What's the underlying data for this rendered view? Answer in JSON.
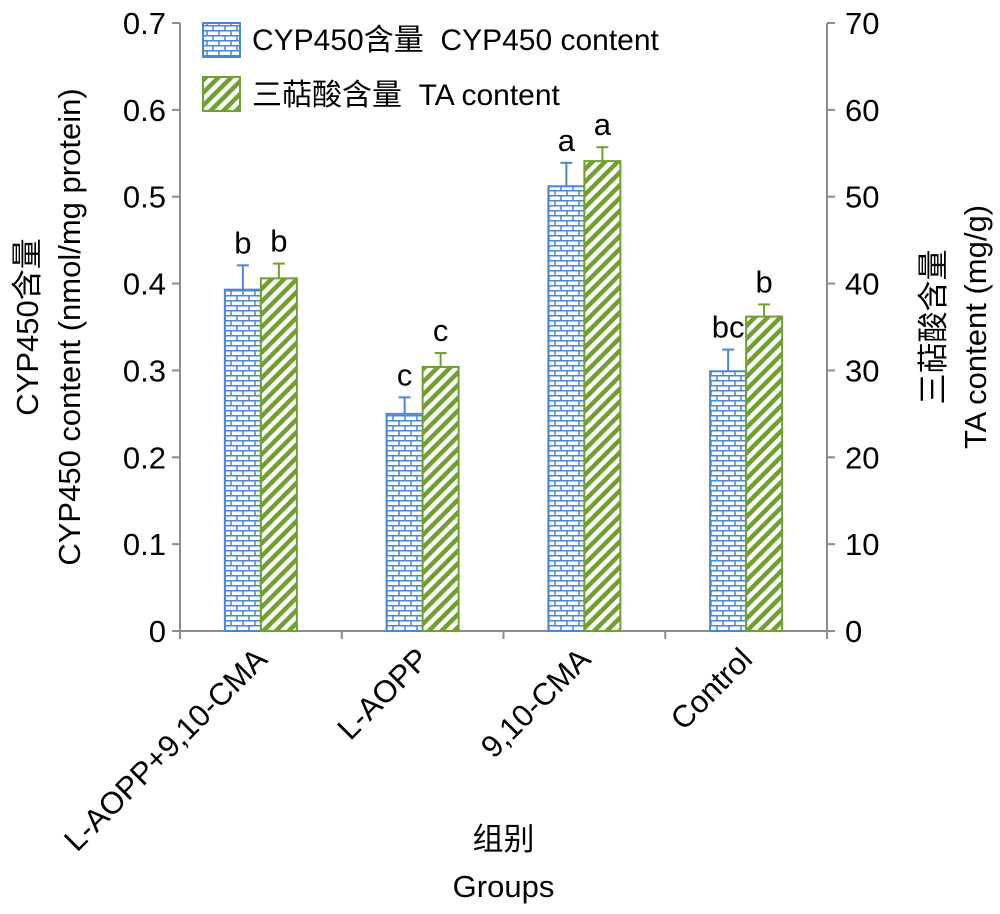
{
  "chart_data": {
    "type": "bar",
    "categories": [
      "L-AOPP+9,10-CMA",
      "L-AOPP",
      "9,10-CMA",
      "Control"
    ],
    "xlabel_cn": "组别",
    "xlabel_en": "Groups",
    "ylabel_left_cn": "CYP450含量",
    "ylabel_left_en": "CYP450 content (nmol/mg protein)",
    "ylabel_right_cn": "三萜酸含量",
    "ylabel_right_en": "TA content (mg/g)",
    "left_axis": {
      "ylim": [
        0,
        0.7
      ],
      "ticks": [
        "0",
        "0.1",
        "0.2",
        "0.3",
        "0.4",
        "0.5",
        "0.6",
        "0.7"
      ]
    },
    "right_axis": {
      "ylim": [
        0,
        70
      ],
      "ticks": [
        "0",
        "10",
        "20",
        "30",
        "40",
        "50",
        "60",
        "70"
      ]
    },
    "legend_position": "top-left",
    "grid": false,
    "series": [
      {
        "name": "CYP450含量  CYP450 content",
        "axis": "left",
        "color": "#4a86d4",
        "pattern": "brick",
        "values": [
          0.393,
          0.25,
          0.512,
          0.299
        ],
        "errors": [
          0.028,
          0.019,
          0.027,
          0.025
        ],
        "letters": [
          "b",
          "c",
          "a",
          "bc"
        ]
      },
      {
        "name": "三萜酸含量  TA content",
        "axis": "right",
        "color": "#70a030",
        "pattern": "diagonal",
        "values": [
          40.6,
          30.4,
          54.1,
          36.2
        ],
        "errors": [
          1.7,
          1.6,
          1.6,
          1.4
        ],
        "letters": [
          "b",
          "c",
          "a",
          "b"
        ]
      }
    ]
  }
}
